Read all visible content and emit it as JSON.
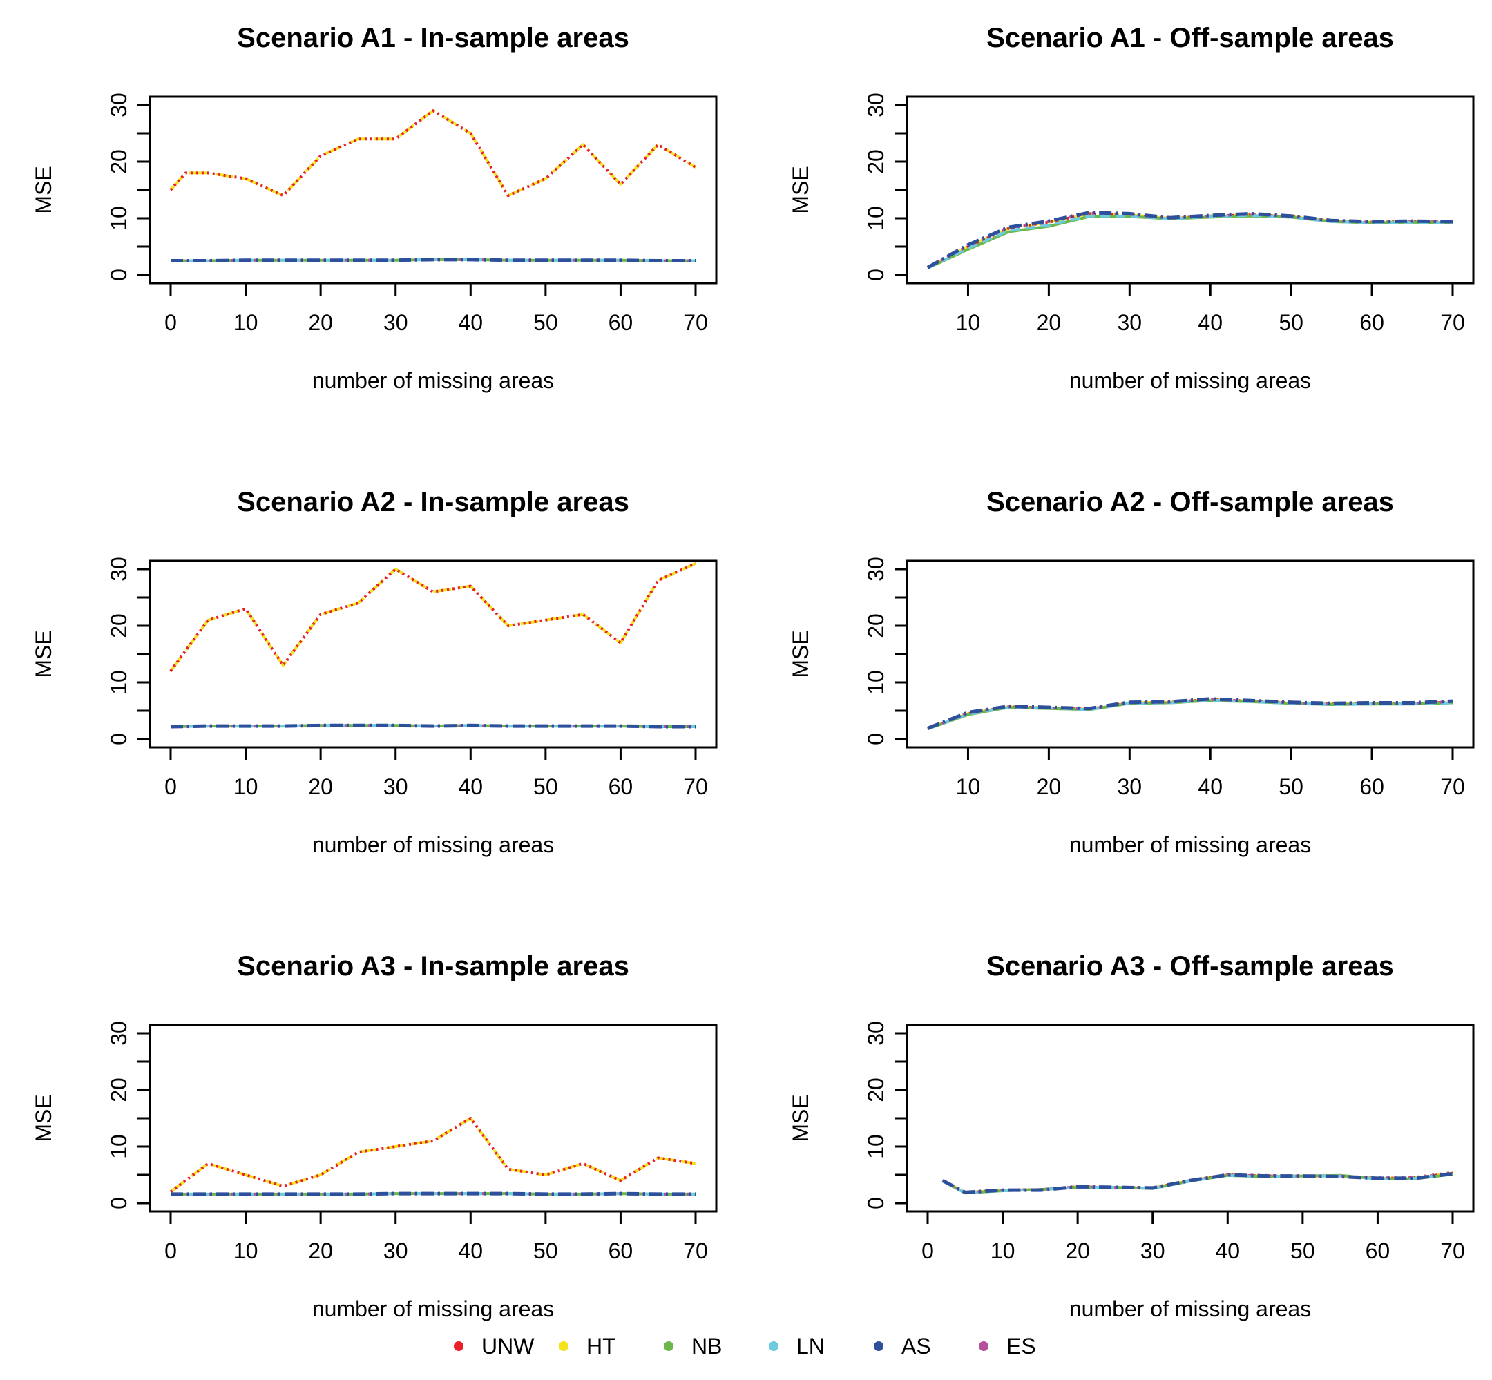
{
  "chart_data": [
    {
      "type": "line",
      "title": "Scenario A1 - In-sample areas",
      "xlabel": "number of missing areas",
      "ylabel": "MSE",
      "xlim": [
        0,
        70
      ],
      "ylim": [
        0,
        30
      ],
      "xticks": [
        0,
        10,
        20,
        30,
        40,
        50,
        60,
        70
      ],
      "yticks": [
        0,
        10,
        20,
        30
      ],
      "x": [
        0,
        2,
        5,
        10,
        15,
        20,
        25,
        30,
        35,
        40,
        45,
        50,
        55,
        60,
        65,
        70
      ],
      "series": [
        {
          "name": "UNW",
          "values": [
            15,
            18,
            18,
            17,
            14,
            21,
            24,
            24,
            29,
            25,
            14,
            17,
            23,
            16,
            23,
            19
          ]
        },
        {
          "name": "HT",
          "values": [
            15,
            18,
            18,
            17,
            14,
            21,
            24,
            24,
            29,
            25,
            14,
            17,
            23,
            16,
            23,
            19
          ]
        },
        {
          "name": "NB",
          "values": [
            2.5,
            2.5,
            2.5,
            2.6,
            2.6,
            2.6,
            2.6,
            2.6,
            2.7,
            2.7,
            2.6,
            2.6,
            2.6,
            2.6,
            2.5,
            2.5
          ]
        },
        {
          "name": "LN",
          "values": [
            2.5,
            2.5,
            2.5,
            2.6,
            2.6,
            2.6,
            2.6,
            2.6,
            2.7,
            2.7,
            2.6,
            2.6,
            2.6,
            2.6,
            2.5,
            2.5
          ]
        },
        {
          "name": "AS",
          "values": [
            2.5,
            2.5,
            2.5,
            2.6,
            2.6,
            2.6,
            2.6,
            2.6,
            2.7,
            2.7,
            2.6,
            2.6,
            2.6,
            2.6,
            2.5,
            2.5
          ]
        },
        {
          "name": "ES",
          "values": [
            2.5,
            2.5,
            2.5,
            2.6,
            2.6,
            2.6,
            2.6,
            2.6,
            2.7,
            2.7,
            2.6,
            2.6,
            2.6,
            2.6,
            2.5,
            2.5
          ]
        }
      ]
    },
    {
      "type": "line",
      "title": "Scenario A1 - Off-sample areas",
      "xlabel": "number of missing areas",
      "ylabel": "MSE",
      "xlim": [
        5,
        70
      ],
      "ylim": [
        0,
        30
      ],
      "xticks": [
        10,
        20,
        30,
        40,
        50,
        60,
        70
      ],
      "yticks": [
        0,
        10,
        20,
        30
      ],
      "x": [
        5,
        10,
        15,
        20,
        25,
        30,
        35,
        40,
        45,
        50,
        55,
        60,
        65,
        70
      ],
      "series": [
        {
          "name": "UNW",
          "values": [
            1.3,
            5.0,
            8.2,
            9.3,
            10.8,
            10.6,
            10.0,
            10.4,
            10.6,
            10.3,
            9.5,
            9.3,
            9.4,
            9.3
          ]
        },
        {
          "name": "HT",
          "values": [
            1.3,
            5.0,
            8.2,
            9.3,
            10.8,
            10.6,
            10.0,
            10.4,
            10.6,
            10.3,
            9.5,
            9.3,
            9.4,
            9.3
          ]
        },
        {
          "name": "NB",
          "values": [
            1.2,
            4.5,
            7.6,
            8.6,
            10.3,
            10.3,
            9.9,
            10.2,
            10.4,
            10.2,
            9.4,
            9.2,
            9.3,
            9.2
          ]
        },
        {
          "name": "LN",
          "values": [
            1.2,
            4.7,
            7.8,
            8.8,
            10.4,
            10.4,
            9.9,
            10.3,
            10.5,
            10.2,
            9.4,
            9.2,
            9.3,
            9.2
          ]
        },
        {
          "name": "AS",
          "values": [
            1.3,
            5.3,
            8.4,
            9.5,
            11.0,
            10.8,
            10.1,
            10.5,
            10.8,
            10.4,
            9.6,
            9.4,
            9.5,
            9.4
          ]
        },
        {
          "name": "ES",
          "values": [
            1.3,
            5.1,
            8.3,
            9.4,
            10.9,
            10.7,
            10.0,
            10.4,
            10.7,
            10.3,
            9.5,
            9.3,
            9.5,
            9.3
          ]
        }
      ]
    },
    {
      "type": "line",
      "title": "Scenario A2 - In-sample areas",
      "xlabel": "number of missing areas",
      "ylabel": "MSE",
      "xlim": [
        0,
        70
      ],
      "ylim": [
        0,
        30
      ],
      "xticks": [
        0,
        10,
        20,
        30,
        40,
        50,
        60,
        70
      ],
      "yticks": [
        0,
        10,
        20,
        30
      ],
      "x": [
        0,
        5,
        10,
        15,
        20,
        25,
        30,
        35,
        40,
        45,
        50,
        55,
        60,
        65,
        70
      ],
      "series": [
        {
          "name": "UNW",
          "values": [
            12,
            21,
            23,
            13,
            22,
            24,
            30,
            26,
            27,
            20,
            21,
            22,
            17,
            28,
            31
          ]
        },
        {
          "name": "HT",
          "values": [
            12,
            21,
            23,
            13,
            22,
            24,
            30,
            26,
            27,
            20,
            21,
            22,
            17,
            28,
            31
          ]
        },
        {
          "name": "NB",
          "values": [
            2.2,
            2.3,
            2.3,
            2.3,
            2.4,
            2.4,
            2.4,
            2.3,
            2.4,
            2.3,
            2.3,
            2.3,
            2.3,
            2.2,
            2.2
          ]
        },
        {
          "name": "LN",
          "values": [
            2.2,
            2.3,
            2.3,
            2.3,
            2.4,
            2.4,
            2.4,
            2.3,
            2.4,
            2.3,
            2.3,
            2.3,
            2.3,
            2.2,
            2.2
          ]
        },
        {
          "name": "AS",
          "values": [
            2.2,
            2.3,
            2.3,
            2.3,
            2.4,
            2.4,
            2.4,
            2.3,
            2.4,
            2.3,
            2.3,
            2.3,
            2.3,
            2.2,
            2.2
          ]
        },
        {
          "name": "ES",
          "values": [
            2.2,
            2.3,
            2.3,
            2.3,
            2.4,
            2.4,
            2.4,
            2.3,
            2.4,
            2.3,
            2.3,
            2.3,
            2.3,
            2.2,
            2.2
          ]
        }
      ]
    },
    {
      "type": "line",
      "title": "Scenario A2 - Off-sample areas",
      "xlabel": "number of missing areas",
      "ylabel": "MSE",
      "xlim": [
        5,
        70
      ],
      "ylim": [
        0,
        30
      ],
      "xticks": [
        10,
        20,
        30,
        40,
        50,
        60,
        70
      ],
      "yticks": [
        0,
        10,
        20,
        30
      ],
      "x": [
        5,
        10,
        15,
        20,
        25,
        30,
        35,
        40,
        45,
        50,
        55,
        60,
        65,
        70
      ],
      "series": [
        {
          "name": "UNW",
          "values": [
            1.8,
            4.5,
            5.7,
            5.5,
            5.3,
            6.4,
            6.5,
            7.0,
            6.7,
            6.4,
            6.2,
            6.3,
            6.3,
            6.5
          ]
        },
        {
          "name": "HT",
          "values": [
            1.8,
            4.5,
            5.7,
            5.5,
            5.3,
            6.4,
            6.5,
            7.0,
            6.7,
            6.4,
            6.2,
            6.3,
            6.3,
            6.5
          ]
        },
        {
          "name": "NB",
          "values": [
            1.8,
            4.3,
            5.6,
            5.4,
            5.2,
            6.3,
            6.4,
            6.8,
            6.6,
            6.3,
            6.1,
            6.2,
            6.2,
            6.4
          ]
        },
        {
          "name": "LN",
          "values": [
            1.8,
            4.4,
            5.6,
            5.5,
            5.2,
            6.3,
            6.4,
            6.9,
            6.6,
            6.3,
            6.1,
            6.2,
            6.2,
            6.4
          ]
        },
        {
          "name": "AS",
          "values": [
            1.9,
            4.7,
            5.8,
            5.6,
            5.4,
            6.5,
            6.6,
            7.1,
            6.8,
            6.5,
            6.3,
            6.4,
            6.4,
            6.7
          ]
        },
        {
          "name": "ES",
          "values": [
            1.8,
            4.6,
            5.7,
            5.5,
            5.3,
            6.4,
            6.5,
            7.0,
            6.7,
            6.4,
            6.2,
            6.3,
            6.3,
            6.6
          ]
        }
      ]
    },
    {
      "type": "line",
      "title": "Scenario A3 - In-sample areas",
      "xlabel": "number of missing areas",
      "ylabel": "MSE",
      "xlim": [
        0,
        70
      ],
      "ylim": [
        0,
        30
      ],
      "xticks": [
        0,
        10,
        20,
        30,
        40,
        50,
        60,
        70
      ],
      "yticks": [
        0,
        10,
        20,
        30
      ],
      "x": [
        0,
        5,
        10,
        15,
        20,
        25,
        30,
        35,
        40,
        45,
        50,
        55,
        60,
        65,
        70
      ],
      "series": [
        {
          "name": "UNW",
          "values": [
            2,
            7,
            5,
            3,
            5,
            9,
            10,
            11,
            15,
            6,
            5,
            7,
            4,
            8,
            7
          ]
        },
        {
          "name": "HT",
          "values": [
            2,
            7,
            5,
            3,
            5,
            9,
            10,
            11,
            15,
            6,
            5,
            7,
            4,
            8,
            7
          ]
        },
        {
          "name": "NB",
          "values": [
            1.6,
            1.6,
            1.6,
            1.6,
            1.6,
            1.6,
            1.7,
            1.7,
            1.7,
            1.7,
            1.6,
            1.6,
            1.7,
            1.6,
            1.6
          ]
        },
        {
          "name": "LN",
          "values": [
            1.6,
            1.6,
            1.6,
            1.6,
            1.6,
            1.6,
            1.7,
            1.7,
            1.7,
            1.7,
            1.6,
            1.6,
            1.7,
            1.6,
            1.6
          ]
        },
        {
          "name": "AS",
          "values": [
            1.6,
            1.6,
            1.6,
            1.6,
            1.6,
            1.6,
            1.7,
            1.7,
            1.7,
            1.7,
            1.6,
            1.6,
            1.7,
            1.6,
            1.6
          ]
        },
        {
          "name": "ES",
          "values": [
            1.6,
            1.6,
            1.6,
            1.6,
            1.6,
            1.6,
            1.7,
            1.7,
            1.7,
            1.7,
            1.6,
            1.6,
            1.7,
            1.6,
            1.6
          ]
        }
      ]
    },
    {
      "type": "line",
      "title": "Scenario A3 - Off-sample areas",
      "xlabel": "number of missing areas",
      "ylabel": "MSE",
      "xlim": [
        0,
        70
      ],
      "ylim": [
        0,
        30
      ],
      "xticks": [
        0,
        10,
        20,
        30,
        40,
        50,
        60,
        70
      ],
      "yticks": [
        0,
        10,
        20,
        30
      ],
      "x": [
        2,
        5,
        10,
        15,
        20,
        25,
        30,
        35,
        40,
        45,
        50,
        55,
        60,
        65,
        70
      ],
      "series": [
        {
          "name": "UNW",
          "values": [
            4.0,
            1.9,
            2.3,
            2.4,
            2.9,
            2.8,
            2.7,
            4.0,
            5.0,
            4.8,
            4.8,
            4.8,
            4.4,
            4.5,
            5.3
          ]
        },
        {
          "name": "HT",
          "values": [
            4.0,
            1.9,
            2.3,
            2.4,
            2.9,
            2.8,
            2.7,
            4.0,
            5.0,
            4.8,
            4.8,
            4.8,
            4.4,
            4.5,
            5.3
          ]
        },
        {
          "name": "NB",
          "values": [
            3.9,
            1.8,
            2.2,
            2.4,
            2.8,
            2.8,
            2.6,
            3.9,
            4.9,
            4.7,
            4.8,
            4.9,
            4.3,
            4.3,
            5.1
          ]
        },
        {
          "name": "LN",
          "values": [
            3.9,
            1.8,
            2.2,
            2.4,
            2.8,
            2.8,
            2.6,
            3.9,
            4.9,
            4.7,
            4.8,
            4.8,
            4.3,
            4.4,
            5.2
          ]
        },
        {
          "name": "AS",
          "values": [
            4.0,
            1.9,
            2.3,
            2.3,
            2.9,
            2.8,
            2.7,
            4.0,
            5.0,
            4.8,
            4.8,
            4.7,
            4.4,
            4.4,
            5.2
          ]
        },
        {
          "name": "ES",
          "values": [
            4.0,
            1.9,
            2.3,
            2.4,
            2.9,
            2.8,
            2.7,
            4.0,
            5.0,
            4.9,
            4.8,
            4.8,
            4.5,
            4.6,
            5.4
          ]
        }
      ]
    }
  ],
  "legend": {
    "items": [
      {
        "label": "UNW",
        "color": "#e8202a"
      },
      {
        "label": "HT",
        "color": "#f4e31c"
      },
      {
        "label": "NB",
        "color": "#6ab74a"
      },
      {
        "label": "LN",
        "color": "#6ccbdc"
      },
      {
        "label": "AS",
        "color": "#2e4f9c"
      },
      {
        "label": "ES",
        "color": "#b5509c"
      }
    ]
  }
}
